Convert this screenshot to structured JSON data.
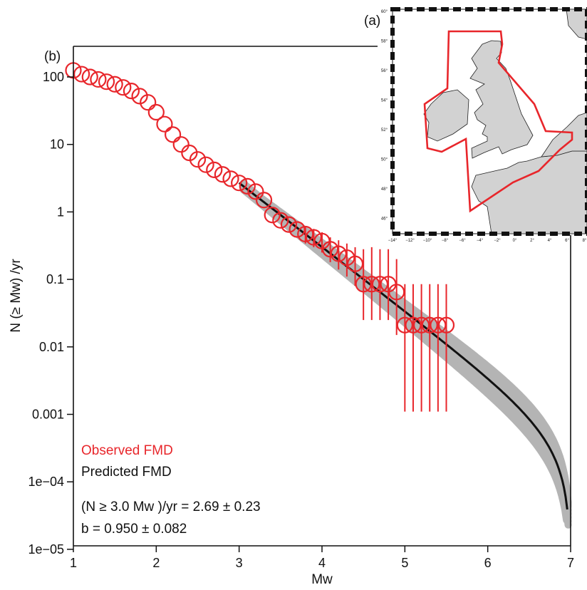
{
  "chart_data": [
    {
      "panel": "(b)",
      "type": "scatter",
      "xlabel": "Mw",
      "ylabel": "N (≥ Mw) /yr",
      "xlim": [
        1,
        7
      ],
      "ylim": [
        1e-05,
        200
      ],
      "y_scale": "log",
      "x_ticks": [
        1,
        2,
        3,
        4,
        5,
        6,
        7
      ],
      "x_tick_labels": [
        "1",
        "2",
        "3",
        "4",
        "5",
        "6",
        "7"
      ],
      "y_ticks": [
        100,
        10,
        1,
        0.1,
        0.01,
        0.001,
        0.0001,
        1e-05
      ],
      "y_tick_labels": [
        "100",
        "10",
        "1",
        "0.1",
        "0.01",
        "0.001",
        "1e−04",
        "1e−05"
      ],
      "legend": {
        "position": "bottom-left",
        "observed": "Observed FMD",
        "predicted": "Predicted FMD",
        "stat1": "(N ≥ 3.0 Mw )/yr = 2.69 ± 0.23",
        "stat2": "b = 0.950 ± 0.082"
      },
      "colors": {
        "observed": "#e8262b",
        "predicted": "#111111",
        "ensemble": "#b4b4b4"
      },
      "observed": {
        "name": "Observed FMD",
        "x": [
          1.0,
          1.1,
          1.2,
          1.3,
          1.4,
          1.5,
          1.6,
          1.7,
          1.8,
          1.9,
          2.0,
          2.1,
          2.2,
          2.3,
          2.4,
          2.5,
          2.6,
          2.7,
          2.8,
          2.9,
          3.0,
          3.1,
          3.2,
          3.3,
          3.4,
          3.5,
          3.6,
          3.7,
          3.8,
          3.9,
          4.0,
          4.1,
          4.2,
          4.3,
          4.4,
          4.5,
          4.6,
          4.7,
          4.8,
          4.9,
          5.0,
          5.1,
          5.2,
          5.3,
          5.4,
          5.5
        ],
        "y": [
          125,
          110,
          100,
          92,
          85,
          78,
          70,
          62,
          52,
          42,
          30,
          20,
          14,
          10,
          7.5,
          6,
          5,
          4.2,
          3.6,
          3.1,
          2.69,
          2.4,
          2.0,
          1.5,
          0.9,
          0.75,
          0.65,
          0.55,
          0.47,
          0.42,
          0.37,
          0.28,
          0.24,
          0.21,
          0.17,
          0.085,
          0.085,
          0.085,
          0.085,
          0.065,
          0.021,
          0.021,
          0.021,
          0.021,
          0.021,
          0.021
        ],
        "err_low": [
          null,
          null,
          null,
          null,
          null,
          null,
          null,
          null,
          null,
          null,
          null,
          null,
          null,
          null,
          null,
          null,
          null,
          null,
          null,
          null,
          null,
          null,
          null,
          null,
          null,
          null,
          null,
          null,
          0.34,
          0.3,
          0.25,
          0.18,
          0.14,
          0.11,
          0.08,
          0.025,
          0.025,
          0.025,
          0.025,
          0.015,
          0.0011,
          0.0011,
          0.0011,
          0.0011,
          0.0011,
          0.0011
        ],
        "err_high": [
          null,
          null,
          null,
          null,
          null,
          null,
          null,
          null,
          null,
          null,
          null,
          null,
          null,
          null,
          null,
          null,
          null,
          null,
          null,
          null,
          null,
          null,
          null,
          null,
          null,
          null,
          null,
          null,
          0.62,
          0.56,
          0.5,
          0.42,
          0.38,
          0.34,
          0.3,
          0.28,
          0.3,
          0.28,
          0.28,
          0.2,
          0.085,
          0.085,
          0.085,
          0.085,
          0.085,
          0.085
        ]
      },
      "predicted": {
        "name": "Predicted FMD",
        "a_at_3": 2.69,
        "b": 0.95,
        "mmax": 7.0,
        "x_start": 3.0
      },
      "ensemble": {
        "a_at_3": [
          2.35,
          2.45,
          2.55,
          2.65,
          2.75,
          2.85,
          2.95,
          3.0,
          2.4,
          2.6,
          2.8
        ],
        "b": [
          0.87,
          0.89,
          0.91,
          0.93,
          0.95,
          0.97,
          0.99,
          1.03,
          1.01,
          0.88,
          0.9
        ]
      }
    },
    {
      "panel": "(a)",
      "type": "map",
      "lon_tick_labels": [
        "−14°",
        "−12°",
        "−10°",
        "−8°",
        "−6°",
        "−4°",
        "−2°",
        "0°",
        "2°",
        "4°",
        "6°",
        "8°"
      ],
      "lat_tick_labels": [
        "60°",
        "58°",
        "56°",
        "54°",
        "52°",
        "50°",
        "48°",
        "46°"
      ],
      "region_color": "#e8262b",
      "land_color": "#d2d2d2"
    }
  ]
}
